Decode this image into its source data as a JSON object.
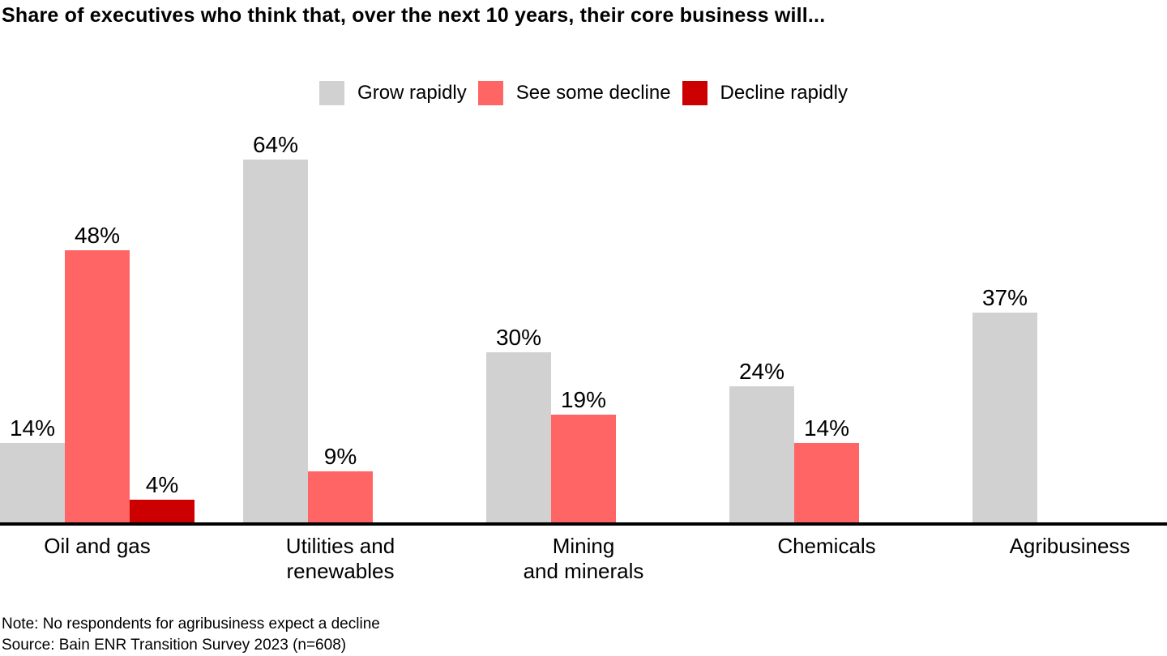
{
  "chart_data": {
    "type": "bar",
    "title": "Share of executives who think that, over the next 10 years, their core business will...",
    "unit": "%",
    "categories": [
      "Oil and gas",
      "Utilities and\nrenewables",
      "Mining\nand minerals",
      "Chemicals",
      "Agribusiness"
    ],
    "series": [
      {
        "name": "Grow rapidly",
        "color": "#d1d1d1",
        "values": [
          14,
          64,
          30,
          24,
          37
        ]
      },
      {
        "name": "See some decline",
        "color": "#ff6565",
        "values": [
          48,
          9,
          19,
          14,
          null
        ]
      },
      {
        "name": "Decline rapidly",
        "color": "#cc0000",
        "values": [
          4,
          null,
          null,
          null,
          null
        ]
      }
    ],
    "ylim": [
      0,
      70
    ],
    "grid": false,
    "legend_position": "top-center",
    "value_labels": true,
    "axis_color": "#000000",
    "note": "Note: No respondents for agribusiness expect a decline",
    "source": "Source: Bain ENR Transition Survey 2023 (n=608)"
  }
}
